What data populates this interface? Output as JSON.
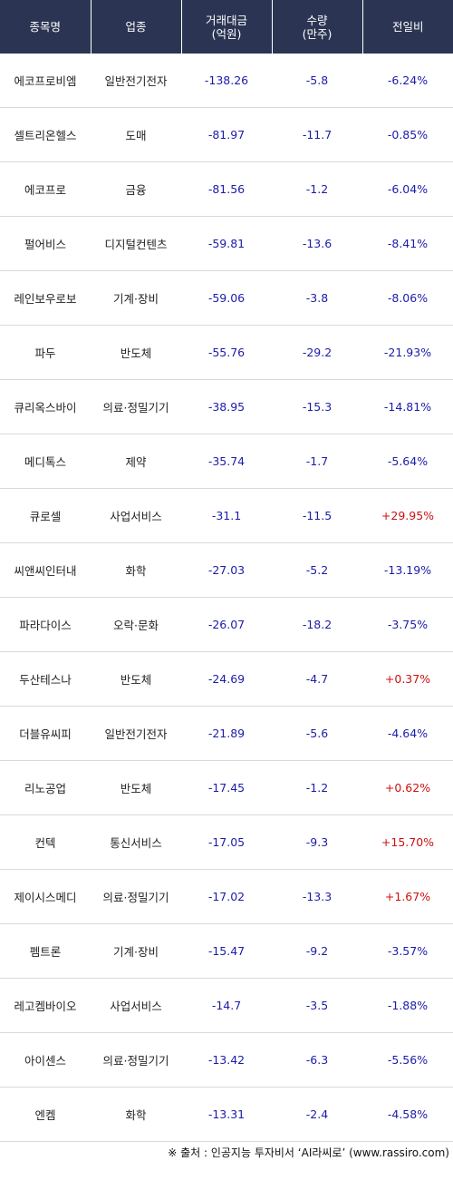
{
  "headers": {
    "name": "종목명",
    "sector": "업종",
    "amount_line1": "거래대금",
    "amount_line2": "(억원)",
    "volume_line1": "수량",
    "volume_line2": "(만주)",
    "change": "전일비"
  },
  "colors": {
    "header_bg": "#2b3553",
    "negative_text": "#1c1caa",
    "positive_text": "#cc1111"
  },
  "rows": [
    {
      "name": "에코프로비엠",
      "sector": "일반전기전자",
      "amount": "-138.26",
      "volume": "-5.8",
      "change": "-6.24%"
    },
    {
      "name": "셀트리온헬스",
      "sector": "도매",
      "amount": "-81.97",
      "volume": "-11.7",
      "change": "-0.85%"
    },
    {
      "name": "에코프로",
      "sector": "금융",
      "amount": "-81.56",
      "volume": "-1.2",
      "change": "-6.04%"
    },
    {
      "name": "펄어비스",
      "sector": "디지털컨텐츠",
      "amount": "-59.81",
      "volume": "-13.6",
      "change": "-8.41%"
    },
    {
      "name": "레인보우로보",
      "sector": "기계·장비",
      "amount": "-59.06",
      "volume": "-3.8",
      "change": "-8.06%"
    },
    {
      "name": "파두",
      "sector": "반도체",
      "amount": "-55.76",
      "volume": "-29.2",
      "change": "-21.93%"
    },
    {
      "name": "큐리옥스바이",
      "sector": "의료·정밀기기",
      "amount": "-38.95",
      "volume": "-15.3",
      "change": "-14.81%"
    },
    {
      "name": "메디톡스",
      "sector": "제약",
      "amount": "-35.74",
      "volume": "-1.7",
      "change": "-5.64%"
    },
    {
      "name": "큐로셀",
      "sector": "사업서비스",
      "amount": "-31.1",
      "volume": "-11.5",
      "change": "+29.95%"
    },
    {
      "name": "씨앤씨인터내",
      "sector": "화학",
      "amount": "-27.03",
      "volume": "-5.2",
      "change": "-13.19%"
    },
    {
      "name": "파라다이스",
      "sector": "오락·문화",
      "amount": "-26.07",
      "volume": "-18.2",
      "change": "-3.75%"
    },
    {
      "name": "두산테스나",
      "sector": "반도체",
      "amount": "-24.69",
      "volume": "-4.7",
      "change": "+0.37%"
    },
    {
      "name": "더블유씨피",
      "sector": "일반전기전자",
      "amount": "-21.89",
      "volume": "-5.6",
      "change": "-4.64%"
    },
    {
      "name": "리노공업",
      "sector": "반도체",
      "amount": "-17.45",
      "volume": "-1.2",
      "change": "+0.62%"
    },
    {
      "name": "컨텍",
      "sector": "통신서비스",
      "amount": "-17.05",
      "volume": "-9.3",
      "change": "+15.70%"
    },
    {
      "name": "제이시스메디",
      "sector": "의료·정밀기기",
      "amount": "-17.02",
      "volume": "-13.3",
      "change": "+1.67%"
    },
    {
      "name": "펨트론",
      "sector": "기계·장비",
      "amount": "-15.47",
      "volume": "-9.2",
      "change": "-3.57%"
    },
    {
      "name": "레고켐바이오",
      "sector": "사업서비스",
      "amount": "-14.7",
      "volume": "-3.5",
      "change": "-1.88%"
    },
    {
      "name": "아이센스",
      "sector": "의료·정밀기기",
      "amount": "-13.42",
      "volume": "-6.3",
      "change": "-5.56%"
    },
    {
      "name": "엔켐",
      "sector": "화학",
      "amount": "-13.31",
      "volume": "-2.4",
      "change": "-4.58%"
    }
  ],
  "source": "※ 출처 : 인공지능 투자비서 ‘AI라씨로’ (www.rassiro.com)"
}
